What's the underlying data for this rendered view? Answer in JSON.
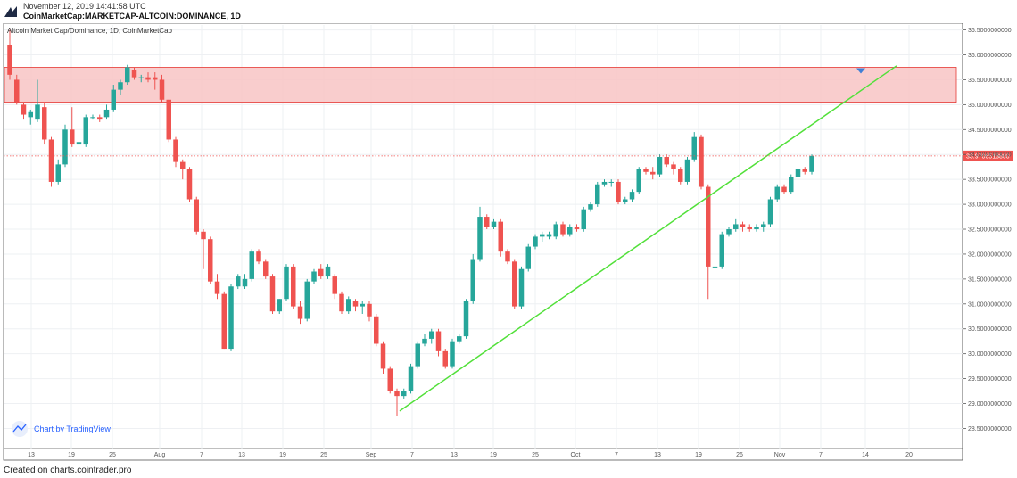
{
  "header": {
    "timestamp": "November 12, 2019 14:41:58 UTC",
    "symbol": "CoinMarketCap:MARKETCAP-ALTCOIN:DOMINANCE, 1D",
    "logo_icon": "cointrader-logo-icon"
  },
  "footer": {
    "text": "Created on charts.cointrader.pro"
  },
  "chart_data": {
    "type": "candlestick",
    "title": "Altcoin Market Cap/Dominance, 1D, CoinMarketCap",
    "watermark": "Chart by TradingView",
    "y_range": [
      28.15,
      36.6
    ],
    "y_ticks": [
      "36.5000000000",
      "36.0000000000",
      "35.5000000000",
      "35.0000000000",
      "34.5000000000",
      "34.0000000000",
      "33.5000000000",
      "33.0000000000",
      "32.5000000000",
      "32.0000000000",
      "31.5000000000",
      "31.0000000000",
      "30.5000000000",
      "30.0000000000",
      "29.5000000000",
      "29.0000000000",
      "28.5000000000"
    ],
    "x_ticks": [
      "13",
      "19",
      "25",
      "Aug",
      "7",
      "13",
      "19",
      "25",
      "Sep",
      "7",
      "13",
      "19",
      "25",
      "Oct",
      "7",
      "13",
      "19",
      "26",
      "Nov",
      "7",
      "14",
      "20"
    ],
    "current_price_label": "33.9706513800",
    "current_price": 33.97,
    "resistance_zone": {
      "low": 35.05,
      "high": 35.75
    },
    "trendline": {
      "from_price": 28.85,
      "to_price": 35.78
    },
    "colors": {
      "up": "#26a69a",
      "down": "#ef5350",
      "zone_fill": "#f8c4c4",
      "zone_stroke": "#e53935",
      "trendline": "#52e03a",
      "marker": "#3f7fd6"
    },
    "candles": [
      {
        "o": 36.2,
        "h": 36.5,
        "l": 35.5,
        "c": 35.6
      },
      {
        "o": 35.5,
        "h": 35.6,
        "l": 35.0,
        "c": 35.05
      },
      {
        "o": 35.0,
        "h": 35.05,
        "l": 34.7,
        "c": 34.8
      },
      {
        "o": 34.75,
        "h": 34.9,
        "l": 34.6,
        "c": 34.85
      },
      {
        "o": 34.7,
        "h": 35.5,
        "l": 34.65,
        "c": 35.0
      },
      {
        "o": 34.95,
        "h": 35.05,
        "l": 34.2,
        "c": 34.3
      },
      {
        "o": 34.3,
        "h": 34.35,
        "l": 33.35,
        "c": 33.45
      },
      {
        "o": 33.45,
        "h": 33.9,
        "l": 33.4,
        "c": 33.8
      },
      {
        "o": 33.8,
        "h": 34.6,
        "l": 33.75,
        "c": 34.5
      },
      {
        "o": 34.5,
        "h": 34.95,
        "l": 34.15,
        "c": 34.2
      },
      {
        "o": 34.2,
        "h": 34.25,
        "l": 34.1,
        "c": 34.25
      },
      {
        "o": 34.2,
        "h": 34.8,
        "l": 34.15,
        "c": 34.75
      },
      {
        "o": 34.75,
        "h": 34.8,
        "l": 34.7,
        "c": 34.75
      },
      {
        "o": 34.75,
        "h": 34.8,
        "l": 34.65,
        "c": 34.7
      },
      {
        "o": 34.75,
        "h": 35.0,
        "l": 34.7,
        "c": 34.9
      },
      {
        "o": 34.9,
        "h": 35.4,
        "l": 34.85,
        "c": 35.3
      },
      {
        "o": 35.3,
        "h": 35.5,
        "l": 35.2,
        "c": 35.45
      },
      {
        "o": 35.45,
        "h": 35.8,
        "l": 35.4,
        "c": 35.75
      },
      {
        "o": 35.7,
        "h": 35.75,
        "l": 35.5,
        "c": 35.55
      },
      {
        "o": 35.55,
        "h": 35.6,
        "l": 35.45,
        "c": 35.55
      },
      {
        "o": 35.55,
        "h": 35.65,
        "l": 35.45,
        "c": 35.5
      },
      {
        "o": 35.55,
        "h": 35.65,
        "l": 35.3,
        "c": 35.5
      },
      {
        "o": 35.5,
        "h": 35.6,
        "l": 35.05,
        "c": 35.1
      },
      {
        "o": 35.1,
        "h": 35.1,
        "l": 34.25,
        "c": 34.3
      },
      {
        "o": 34.3,
        "h": 34.35,
        "l": 33.75,
        "c": 33.85
      },
      {
        "o": 33.85,
        "h": 33.9,
        "l": 33.5,
        "c": 33.7
      },
      {
        "o": 33.7,
        "h": 33.75,
        "l": 33.05,
        "c": 33.1
      },
      {
        "o": 33.1,
        "h": 33.15,
        "l": 32.4,
        "c": 32.45
      },
      {
        "o": 32.45,
        "h": 32.5,
        "l": 31.7,
        "c": 32.3
      },
      {
        "o": 32.3,
        "h": 32.35,
        "l": 31.4,
        "c": 31.45
      },
      {
        "o": 31.45,
        "h": 31.6,
        "l": 31.1,
        "c": 31.2
      },
      {
        "o": 31.2,
        "h": 31.25,
        "l": 30.1,
        "c": 30.1
      },
      {
        "o": 30.1,
        "h": 31.4,
        "l": 30.05,
        "c": 31.35
      },
      {
        "o": 31.35,
        "h": 31.6,
        "l": 31.3,
        "c": 31.55
      },
      {
        "o": 31.35,
        "h": 31.6,
        "l": 31.3,
        "c": 31.5
      },
      {
        "o": 31.5,
        "h": 32.1,
        "l": 31.45,
        "c": 32.05
      },
      {
        "o": 32.05,
        "h": 32.1,
        "l": 31.8,
        "c": 31.85
      },
      {
        "o": 31.85,
        "h": 31.9,
        "l": 31.5,
        "c": 31.55
      },
      {
        "o": 31.55,
        "h": 31.6,
        "l": 30.8,
        "c": 30.85
      },
      {
        "o": 30.85,
        "h": 31.1,
        "l": 30.8,
        "c": 31.1
      },
      {
        "o": 31.1,
        "h": 31.8,
        "l": 31.05,
        "c": 31.75
      },
      {
        "o": 31.75,
        "h": 31.8,
        "l": 30.9,
        "c": 30.95
      },
      {
        "o": 30.95,
        "h": 31.05,
        "l": 30.6,
        "c": 30.7
      },
      {
        "o": 30.7,
        "h": 31.5,
        "l": 30.65,
        "c": 31.45
      },
      {
        "o": 31.45,
        "h": 31.7,
        "l": 31.4,
        "c": 31.65
      },
      {
        "o": 31.7,
        "h": 31.8,
        "l": 31.5,
        "c": 31.55
      },
      {
        "o": 31.55,
        "h": 31.8,
        "l": 31.5,
        "c": 31.75
      },
      {
        "o": 31.55,
        "h": 31.6,
        "l": 31.1,
        "c": 31.2
      },
      {
        "o": 31.2,
        "h": 31.25,
        "l": 30.8,
        "c": 30.85
      },
      {
        "o": 30.85,
        "h": 31.15,
        "l": 30.8,
        "c": 31.1
      },
      {
        "o": 31.05,
        "h": 31.1,
        "l": 30.85,
        "c": 30.95
      },
      {
        "o": 30.95,
        "h": 31.05,
        "l": 30.8,
        "c": 31.0
      },
      {
        "o": 31.0,
        "h": 31.05,
        "l": 30.65,
        "c": 30.75
      },
      {
        "o": 30.75,
        "h": 30.8,
        "l": 30.15,
        "c": 30.2
      },
      {
        "o": 30.2,
        "h": 30.25,
        "l": 29.6,
        "c": 29.7
      },
      {
        "o": 29.7,
        "h": 29.75,
        "l": 29.2,
        "c": 29.25
      },
      {
        "o": 29.25,
        "h": 29.3,
        "l": 28.75,
        "c": 29.15
      },
      {
        "o": 29.15,
        "h": 29.3,
        "l": 29.1,
        "c": 29.25
      },
      {
        "o": 29.25,
        "h": 29.8,
        "l": 29.2,
        "c": 29.75
      },
      {
        "o": 29.75,
        "h": 30.25,
        "l": 29.7,
        "c": 30.2
      },
      {
        "o": 30.2,
        "h": 30.4,
        "l": 30.15,
        "c": 30.3
      },
      {
        "o": 30.3,
        "h": 30.5,
        "l": 30.2,
        "c": 30.45
      },
      {
        "o": 30.45,
        "h": 30.5,
        "l": 29.95,
        "c": 30.05
      },
      {
        "o": 30.05,
        "h": 30.1,
        "l": 29.7,
        "c": 29.75
      },
      {
        "o": 29.75,
        "h": 30.3,
        "l": 29.7,
        "c": 30.25
      },
      {
        "o": 30.25,
        "h": 30.4,
        "l": 30.2,
        "c": 30.35
      },
      {
        "o": 30.35,
        "h": 31.1,
        "l": 30.3,
        "c": 31.05
      },
      {
        "o": 31.05,
        "h": 32.0,
        "l": 31.0,
        "c": 31.9
      },
      {
        "o": 31.9,
        "h": 32.95,
        "l": 31.85,
        "c": 32.75
      },
      {
        "o": 32.75,
        "h": 32.8,
        "l": 32.5,
        "c": 32.55
      },
      {
        "o": 32.55,
        "h": 32.7,
        "l": 32.5,
        "c": 32.65
      },
      {
        "o": 32.65,
        "h": 32.7,
        "l": 31.95,
        "c": 32.05
      },
      {
        "o": 32.05,
        "h": 32.1,
        "l": 31.8,
        "c": 31.85
      },
      {
        "o": 31.85,
        "h": 31.9,
        "l": 30.9,
        "c": 30.95
      },
      {
        "o": 30.95,
        "h": 31.75,
        "l": 30.9,
        "c": 31.7
      },
      {
        "o": 31.7,
        "h": 32.2,
        "l": 31.65,
        "c": 32.15
      },
      {
        "o": 32.15,
        "h": 32.4,
        "l": 32.1,
        "c": 32.35
      },
      {
        "o": 32.35,
        "h": 32.45,
        "l": 32.25,
        "c": 32.4
      },
      {
        "o": 32.35,
        "h": 32.45,
        "l": 32.3,
        "c": 32.4
      },
      {
        "o": 32.35,
        "h": 32.65,
        "l": 32.3,
        "c": 32.6
      },
      {
        "o": 32.6,
        "h": 32.65,
        "l": 32.35,
        "c": 32.4
      },
      {
        "o": 32.4,
        "h": 32.6,
        "l": 32.35,
        "c": 32.55
      },
      {
        "o": 32.55,
        "h": 32.6,
        "l": 32.45,
        "c": 32.5
      },
      {
        "o": 32.5,
        "h": 32.95,
        "l": 32.45,
        "c": 32.9
      },
      {
        "o": 32.9,
        "h": 33.05,
        "l": 32.85,
        "c": 33.0
      },
      {
        "o": 33.0,
        "h": 33.45,
        "l": 32.95,
        "c": 33.4
      },
      {
        "o": 33.4,
        "h": 33.5,
        "l": 33.35,
        "c": 33.45
      },
      {
        "o": 33.45,
        "h": 33.5,
        "l": 33.35,
        "c": 33.45
      },
      {
        "o": 33.45,
        "h": 33.5,
        "l": 33.0,
        "c": 33.05
      },
      {
        "o": 33.05,
        "h": 33.15,
        "l": 33.0,
        "c": 33.1
      },
      {
        "o": 33.1,
        "h": 33.3,
        "l": 33.05,
        "c": 33.25
      },
      {
        "o": 33.25,
        "h": 33.75,
        "l": 33.2,
        "c": 33.7
      },
      {
        "o": 33.7,
        "h": 33.75,
        "l": 33.6,
        "c": 33.65
      },
      {
        "o": 33.65,
        "h": 33.75,
        "l": 33.5,
        "c": 33.6
      },
      {
        "o": 33.6,
        "h": 34.0,
        "l": 33.55,
        "c": 33.95
      },
      {
        "o": 33.95,
        "h": 34.0,
        "l": 33.75,
        "c": 33.8
      },
      {
        "o": 33.8,
        "h": 33.85,
        "l": 33.6,
        "c": 33.7
      },
      {
        "o": 33.7,
        "h": 33.75,
        "l": 33.4,
        "c": 33.45
      },
      {
        "o": 33.45,
        "h": 33.95,
        "l": 33.4,
        "c": 33.9
      },
      {
        "o": 33.9,
        "h": 34.45,
        "l": 33.85,
        "c": 34.35
      },
      {
        "o": 34.35,
        "h": 34.4,
        "l": 33.3,
        "c": 33.35
      },
      {
        "o": 33.35,
        "h": 33.4,
        "l": 31.1,
        "c": 31.75
      },
      {
        "o": 31.75,
        "h": 31.85,
        "l": 31.55,
        "c": 31.75
      },
      {
        "o": 31.75,
        "h": 32.45,
        "l": 31.7,
        "c": 32.4
      },
      {
        "o": 32.4,
        "h": 32.55,
        "l": 32.35,
        "c": 32.5
      },
      {
        "o": 32.5,
        "h": 32.7,
        "l": 32.45,
        "c": 32.6
      },
      {
        "o": 32.6,
        "h": 32.65,
        "l": 32.45,
        "c": 32.55
      },
      {
        "o": 32.55,
        "h": 32.6,
        "l": 32.45,
        "c": 32.5
      },
      {
        "o": 32.5,
        "h": 32.6,
        "l": 32.45,
        "c": 32.55
      },
      {
        "o": 32.55,
        "h": 32.65,
        "l": 32.45,
        "c": 32.6
      },
      {
        "o": 32.6,
        "h": 33.15,
        "l": 32.55,
        "c": 33.1
      },
      {
        "o": 33.1,
        "h": 33.4,
        "l": 33.05,
        "c": 33.35
      },
      {
        "o": 33.35,
        "h": 33.4,
        "l": 33.2,
        "c": 33.25
      },
      {
        "o": 33.25,
        "h": 33.6,
        "l": 33.2,
        "c": 33.55
      },
      {
        "o": 33.55,
        "h": 33.75,
        "l": 33.5,
        "c": 33.7
      },
      {
        "o": 33.7,
        "h": 33.75,
        "l": 33.6,
        "c": 33.65
      },
      {
        "o": 33.65,
        "h": 34.0,
        "l": 33.6,
        "c": 33.97
      }
    ]
  }
}
